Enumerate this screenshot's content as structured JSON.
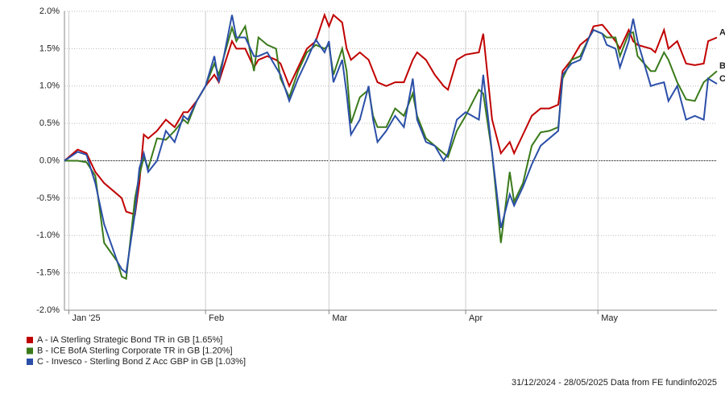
{
  "chart_data": {
    "type": "line",
    "x": [
      0,
      3,
      5,
      7,
      9,
      12,
      13,
      14,
      16,
      17,
      18,
      19,
      21,
      23,
      25,
      27,
      28,
      30,
      32,
      34,
      35,
      38,
      39,
      41,
      43,
      44,
      46,
      48,
      49,
      51,
      53,
      55,
      57,
      59,
      60,
      61,
      63,
      64,
      65,
      67,
      69,
      70,
      71,
      73,
      75,
      77,
      79,
      80,
      82,
      84,
      86,
      87,
      89,
      91,
      94,
      95,
      97,
      99,
      101,
      102,
      104,
      106,
      108,
      110,
      112,
      113,
      115,
      117,
      119,
      120,
      122,
      123,
      125,
      126,
      128,
      129,
      130,
      133,
      134,
      136,
      137,
      139,
      141,
      143,
      145,
      146,
      148
    ],
    "xlim": [
      0,
      148
    ],
    "xticks": [
      {
        "value": 1,
        "label": "Jan '25"
      },
      {
        "value": 32,
        "label": "Feb"
      },
      {
        "value": 60,
        "label": "Mar"
      },
      {
        "value": 91,
        "label": "Apr"
      },
      {
        "value": 121,
        "label": "May"
      }
    ],
    "ylim": [
      -2,
      2
    ],
    "yticks": [
      {
        "value": -2,
        "label": "-2.0%"
      },
      {
        "value": -1.5,
        "label": "-1.5%"
      },
      {
        "value": -1,
        "label": "-1.0%"
      },
      {
        "value": -0.5,
        "label": "-0.5%"
      },
      {
        "value": 0,
        "label": "0.0%"
      },
      {
        "value": 0.5,
        "label": "0.5%"
      },
      {
        "value": 1,
        "label": "1.0%"
      },
      {
        "value": 1.5,
        "label": "1.5%"
      },
      {
        "value": 2,
        "label": "2.0%"
      }
    ],
    "grid": true,
    "series": [
      {
        "name": "A - IA Sterling Strategic Bond TR in GB [1.65%]",
        "end_label": "A",
        "color": "#c00000",
        "values": [
          0,
          0.15,
          0.1,
          -0.15,
          -0.3,
          -0.45,
          -0.5,
          -0.68,
          -0.72,
          -0.3,
          0.35,
          0.3,
          0.4,
          0.55,
          0.45,
          0.65,
          0.65,
          0.8,
          1.0,
          1.15,
          1.05,
          1.6,
          1.5,
          1.5,
          1.25,
          1.35,
          1.4,
          1.35,
          1.3,
          1.0,
          1.25,
          1.5,
          1.6,
          1.95,
          1.8,
          1.95,
          1.85,
          1.5,
          1.35,
          1.45,
          1.35,
          1.2,
          1.05,
          1.0,
          1.05,
          1.05,
          1.35,
          1.45,
          1.35,
          1.15,
          1.0,
          0.95,
          1.35,
          1.42,
          1.45,
          1.7,
          0.55,
          0.1,
          0.25,
          0.1,
          0.35,
          0.6,
          0.7,
          0.7,
          0.75,
          1.2,
          1.35,
          1.55,
          1.65,
          1.8,
          1.82,
          1.75,
          1.6,
          1.5,
          1.75,
          1.6,
          1.55,
          1.5,
          1.45,
          1.75,
          1.5,
          1.6,
          1.3,
          1.28,
          1.3,
          1.6,
          1.65
        ]
      },
      {
        "name": "B - ICE BofA Sterling Corporate TR in GB [1.20%]",
        "end_label": "B",
        "color": "#3a7a1a",
        "values": [
          0,
          0.0,
          -0.02,
          -0.2,
          -1.1,
          -1.35,
          -1.55,
          -1.58,
          -0.5,
          -0.2,
          0.05,
          -0.1,
          0.3,
          0.28,
          0.4,
          0.55,
          0.5,
          0.8,
          1.0,
          1.3,
          1.15,
          1.78,
          1.6,
          1.8,
          1.2,
          1.65,
          1.55,
          1.5,
          1.1,
          0.85,
          1.2,
          1.45,
          1.55,
          1.5,
          1.55,
          1.15,
          1.5,
          1.2,
          0.5,
          0.85,
          0.95,
          0.6,
          0.45,
          0.45,
          0.7,
          0.6,
          0.9,
          0.6,
          0.3,
          0.2,
          0.1,
          0.05,
          0.4,
          0.6,
          0.95,
          0.9,
          0.1,
          -1.1,
          -0.15,
          -0.55,
          -0.3,
          0.2,
          0.38,
          0.4,
          0.45,
          1.1,
          1.35,
          1.4,
          1.65,
          1.75,
          1.7,
          1.65,
          1.65,
          1.4,
          1.7,
          1.72,
          1.4,
          1.2,
          1.2,
          1.45,
          1.35,
          1.05,
          0.82,
          0.8,
          1.05,
          1.1,
          1.2
        ]
      },
      {
        "name": "C - Invesco - Sterling Bond Z Acc GBP in GB [1.03%]",
        "end_label": "C",
        "color": "#2b4fa8",
        "values": [
          0,
          0.12,
          0.08,
          -0.3,
          -0.85,
          -1.35,
          -1.45,
          -1.5,
          -0.7,
          -0.1,
          0.1,
          -0.15,
          0.0,
          0.4,
          0.25,
          0.6,
          0.55,
          0.8,
          1.0,
          1.4,
          1.05,
          1.95,
          1.65,
          1.65,
          1.4,
          1.4,
          1.45,
          1.25,
          1.15,
          0.8,
          1.1,
          1.35,
          1.62,
          1.45,
          1.6,
          1.05,
          1.35,
          0.9,
          0.35,
          0.55,
          1.0,
          0.55,
          0.25,
          0.4,
          0.6,
          0.45,
          1.1,
          0.55,
          0.25,
          0.2,
          0.0,
          0.1,
          0.55,
          0.65,
          0.55,
          1.15,
          0.1,
          -0.9,
          -0.45,
          -0.6,
          -0.35,
          -0.05,
          0.2,
          0.3,
          0.4,
          1.15,
          1.3,
          1.35,
          1.65,
          1.75,
          1.7,
          1.55,
          1.5,
          1.25,
          1.6,
          1.9,
          1.6,
          1.0,
          1.02,
          1.05,
          0.8,
          1.0,
          0.55,
          0.6,
          0.55,
          1.1,
          1.03
        ]
      }
    ],
    "footer": "31/12/2024 - 28/05/2025 Data from FE fundinfo2025"
  }
}
